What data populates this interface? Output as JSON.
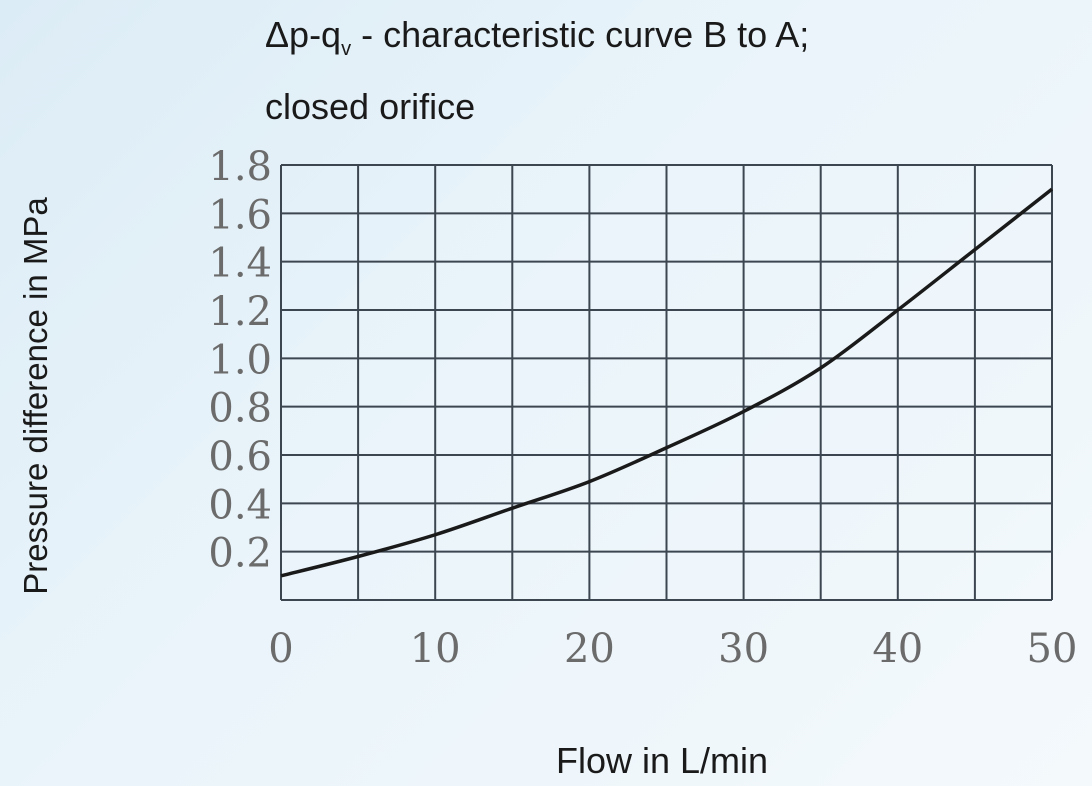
{
  "chart_data": {
    "type": "line",
    "title": {
      "prefix": "Δp-q",
      "subscript": "v",
      "suffix": " - characteristic curve B to A;",
      "line2": "closed orifice"
    },
    "xlabel": "Flow  in L/min",
    "ylabel": "Pressure difference in MPa",
    "xlim": [
      0,
      50
    ],
    "ylim": [
      0,
      1.8
    ],
    "x_ticks": [
      "0",
      "10",
      "20",
      "30",
      "40",
      "50"
    ],
    "y_ticks": [
      "0.2",
      "0.4",
      "0.6",
      "0.8",
      "1.0",
      "1.2",
      "1.4",
      "1.6",
      "1.8"
    ],
    "grid": true,
    "series": [
      {
        "x": [
          0,
          5,
          10,
          15,
          20,
          25,
          30,
          35,
          40,
          45,
          50
        ],
        "y": [
          0.1,
          0.18,
          0.27,
          0.38,
          0.49,
          0.63,
          0.78,
          0.96,
          1.2,
          1.45,
          1.7
        ]
      }
    ],
    "colors": {
      "line": "#1a1a1a",
      "grid": "#3c4650"
    }
  }
}
